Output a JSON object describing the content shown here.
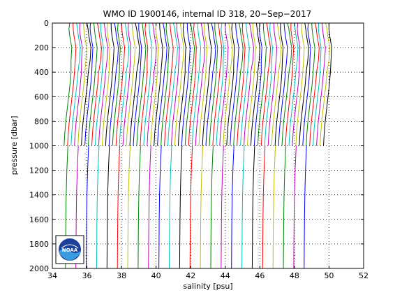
{
  "chart_data": {
    "type": "line",
    "title": "WMO ID 1900146, internal ID 318, 20−Sep−2017",
    "xlabel": "salinity [psu]",
    "ylabel": "pressure [dbar]",
    "xlim": [
      34,
      52
    ],
    "ylim": [
      0,
      2000
    ],
    "y_reversed": true,
    "grid": "dotted",
    "xticks": [
      "34",
      "36",
      "38",
      "40",
      "42",
      "44",
      "46",
      "48",
      "50",
      "52"
    ],
    "yticks": [
      "0",
      "200",
      "400",
      "600",
      "800",
      "1000",
      "1200",
      "1400",
      "1600",
      "1800",
      "2000"
    ],
    "offset_between_profiles_psu": 0.2,
    "deep_profiles_offset_psu": 0.6,
    "color_cycle": [
      "#008000",
      "#ff0000",
      "#00bfbf",
      "#bf00bf",
      "#bfbf00",
      "#000000",
      "#0000ff"
    ],
    "shallow_series": {
      "count": 76,
      "first_surface_salinity": 35.0,
      "pressure": [
        0,
        50,
        100,
        150,
        200,
        300,
        400,
        500,
        600,
        700,
        800,
        900,
        1000
      ],
      "salinity_anomaly": [
        0.0,
        0.02,
        0.06,
        0.12,
        0.18,
        0.14,
        0.08,
        0.02,
        -0.06,
        -0.14,
        -0.22,
        -0.28,
        -0.32
      ]
    },
    "deep_series": {
      "count": 24,
      "first_salinity_at_1000": 34.9,
      "pressure": [
        1000,
        1200,
        1400,
        1600,
        1800,
        2000
      ],
      "salinity_anomaly": [
        0.0,
        -0.06,
        -0.1,
        -0.12,
        -0.13,
        -0.14
      ]
    }
  },
  "logo": {
    "text": "NOAA"
  }
}
